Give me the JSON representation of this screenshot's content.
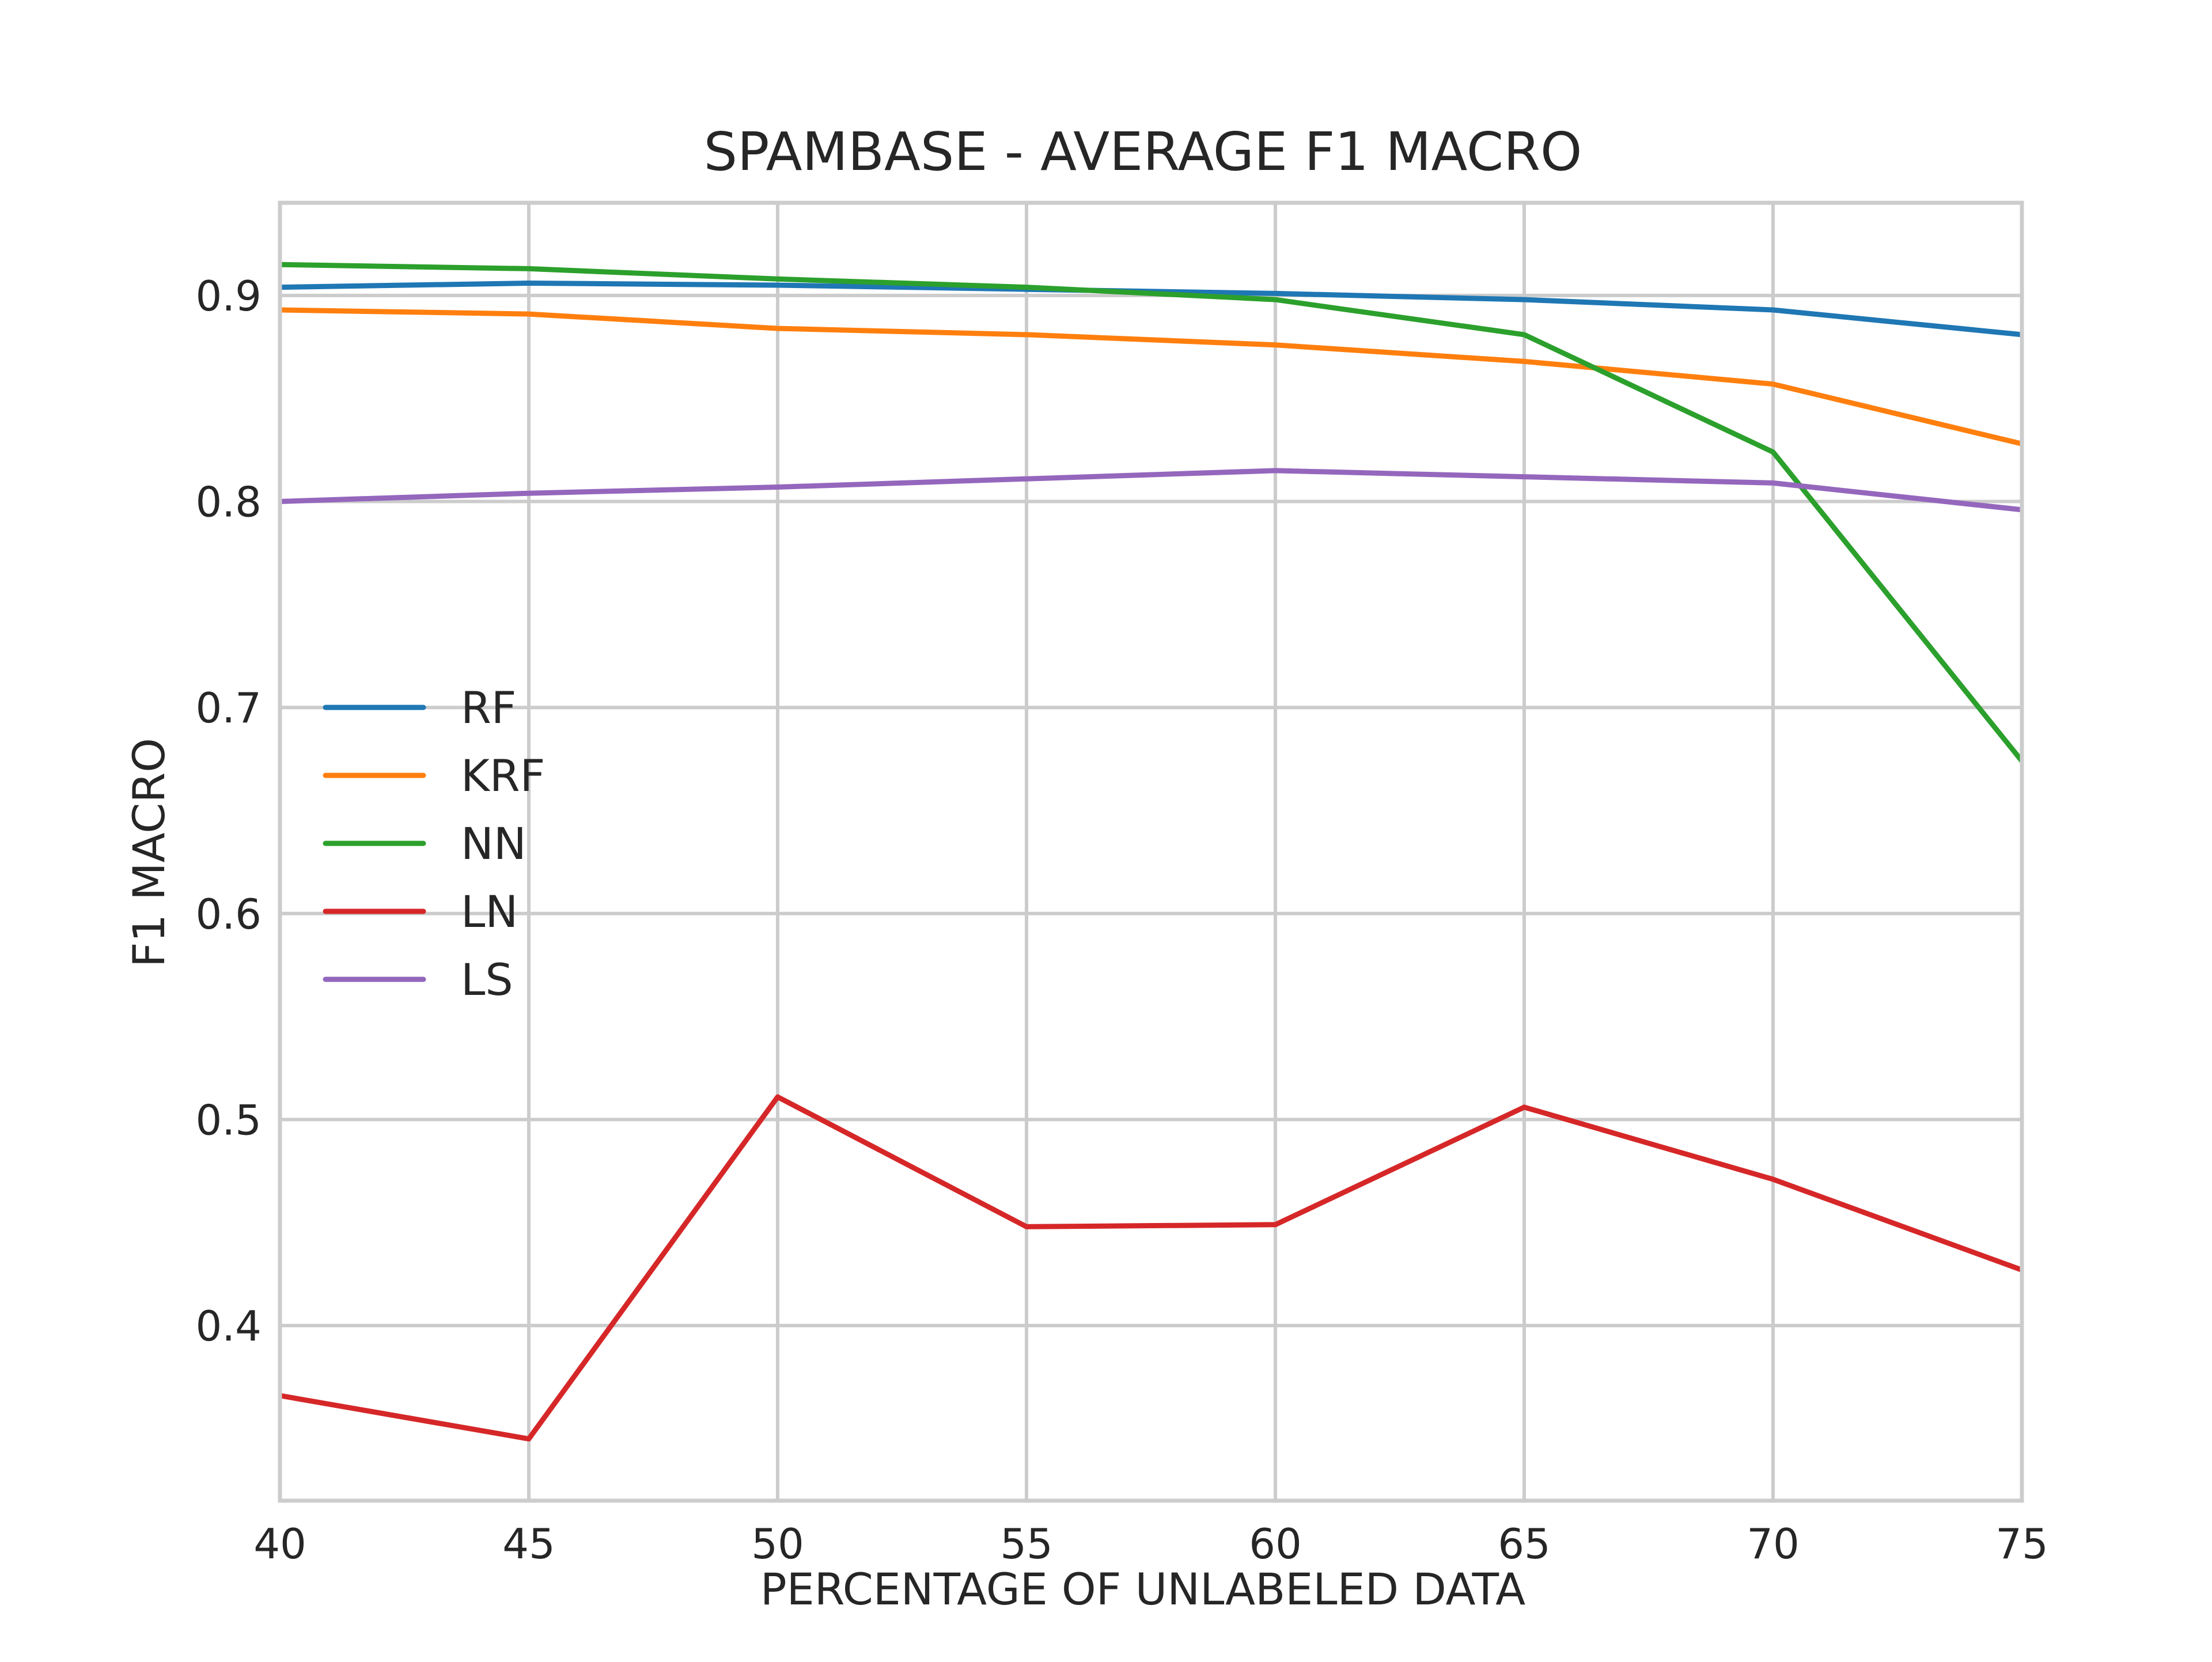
{
  "chart_data": {
    "type": "line",
    "title": "SPAMBASE - AVERAGE F1 MACRO",
    "xlabel": "PERCENTAGE OF UNLABELED DATA",
    "ylabel": "F1 MACRO",
    "x": [
      40,
      45,
      50,
      55,
      60,
      65,
      70,
      75
    ],
    "xlim": [
      40,
      75
    ],
    "ylim": [
      0.315,
      0.945
    ],
    "xticks": [
      "40",
      "45",
      "50",
      "55",
      "60",
      "65",
      "70",
      "75"
    ],
    "yticks": [
      "0.4",
      "0.5",
      "0.6",
      "0.7",
      "0.8",
      "0.9"
    ],
    "ytick_values": [
      0.4,
      0.5,
      0.6,
      0.7,
      0.8,
      0.9
    ],
    "grid": true,
    "legend_position": "center-left",
    "series": [
      {
        "name": "RF",
        "color": "#1f77b4",
        "values": [
          0.904,
          0.906,
          0.905,
          0.903,
          0.901,
          0.898,
          0.893,
          0.881
        ]
      },
      {
        "name": "KRF",
        "color": "#ff7f0e",
        "values": [
          0.893,
          0.891,
          0.884,
          0.881,
          0.876,
          0.868,
          0.857,
          0.828
        ]
      },
      {
        "name": "NN",
        "color": "#2ca02c",
        "values": [
          0.915,
          0.913,
          0.908,
          0.904,
          0.898,
          0.881,
          0.824,
          0.674
        ]
      },
      {
        "name": "LN",
        "color": "#d62728",
        "values": [
          0.366,
          0.345,
          0.511,
          0.448,
          0.449,
          0.506,
          0.471,
          0.427
        ]
      },
      {
        "name": "LS",
        "color": "#9467bd",
        "values": [
          0.8,
          0.804,
          0.807,
          0.811,
          0.815,
          0.812,
          0.809,
          0.796
        ]
      }
    ]
  }
}
